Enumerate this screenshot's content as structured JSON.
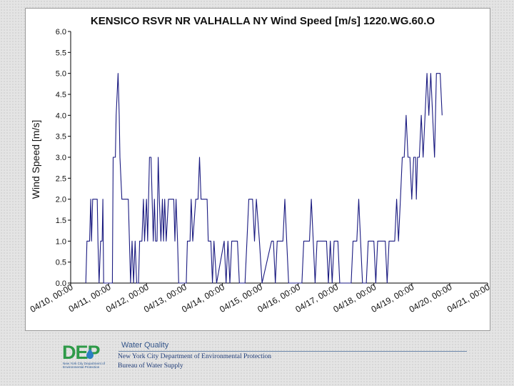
{
  "chart_data": {
    "type": "line",
    "title": "KENSICO RSVR NR VALHALLA NY Wind Speed [m/s] 1220.WG.60.O",
    "xlabel": "",
    "ylabel": "Wind Speed [m/s]",
    "ylim": [
      0,
      6
    ],
    "y_ticks": [
      "0.0",
      "0.5",
      "1.0",
      "1.5",
      "2.0",
      "2.5",
      "3.0",
      "3.5",
      "4.0",
      "4.5",
      "5.0",
      "5.5",
      "6.0"
    ],
    "x_unit": "days since 04/10 00:00",
    "xlim": [
      0,
      11
    ],
    "x_ticks": [
      "04/10, 00:00",
      "04/11, 00:00",
      "04/12, 00:00",
      "04/13, 00:00",
      "04/14, 00:00",
      "04/15, 00:00",
      "04/16, 00:00",
      "04/17, 00:00",
      "04/18, 00:00",
      "04/19, 00:00",
      "04/20, 00:00",
      "04/21, 00:00"
    ],
    "grid": false,
    "legend": "none",
    "line_color": "#1a1a80",
    "series": [
      {
        "name": "",
        "points": [
          [
            0.4,
            0
          ],
          [
            0.43,
            1
          ],
          [
            0.5,
            1
          ],
          [
            0.53,
            2
          ],
          [
            0.55,
            1
          ],
          [
            0.58,
            2
          ],
          [
            0.7,
            2
          ],
          [
            0.72,
            1
          ],
          [
            0.75,
            0
          ],
          [
            0.79,
            1
          ],
          [
            0.83,
            1
          ],
          [
            0.85,
            2
          ],
          [
            0.87,
            0
          ],
          [
            1.1,
            0
          ],
          [
            1.12,
            3
          ],
          [
            1.18,
            3
          ],
          [
            1.2,
            4
          ],
          [
            1.25,
            5
          ],
          [
            1.28,
            4
          ],
          [
            1.3,
            3
          ],
          [
            1.35,
            2
          ],
          [
            1.52,
            2
          ],
          [
            1.55,
            1
          ],
          [
            1.58,
            0
          ],
          [
            1.62,
            1
          ],
          [
            1.66,
            0
          ],
          [
            1.7,
            1
          ],
          [
            1.74,
            0
          ],
          [
            1.79,
            0
          ],
          [
            1.82,
            1
          ],
          [
            1.88,
            1
          ],
          [
            1.92,
            2
          ],
          [
            1.95,
            1
          ],
          [
            2.0,
            2
          ],
          [
            2.03,
            1
          ],
          [
            2.08,
            3
          ],
          [
            2.12,
            3
          ],
          [
            2.15,
            2
          ],
          [
            2.18,
            1
          ],
          [
            2.21,
            2
          ],
          [
            2.24,
            1
          ],
          [
            2.28,
            1
          ],
          [
            2.31,
            3
          ],
          [
            2.34,
            2
          ],
          [
            2.38,
            1
          ],
          [
            2.42,
            2
          ],
          [
            2.45,
            1
          ],
          [
            2.48,
            2
          ],
          [
            2.52,
            1
          ],
          [
            2.58,
            2
          ],
          [
            2.72,
            2
          ],
          [
            2.75,
            1
          ],
          [
            2.78,
            2
          ],
          [
            2.82,
            1
          ],
          [
            2.85,
            0
          ],
          [
            3.05,
            0
          ],
          [
            3.08,
            1
          ],
          [
            3.15,
            1
          ],
          [
            3.18,
            2
          ],
          [
            3.22,
            1
          ],
          [
            3.3,
            2
          ],
          [
            3.36,
            2
          ],
          [
            3.4,
            3
          ],
          [
            3.44,
            2
          ],
          [
            3.6,
            2
          ],
          [
            3.63,
            1
          ],
          [
            3.7,
            1
          ],
          [
            3.74,
            0
          ],
          [
            3.78,
            1
          ],
          [
            3.85,
            0
          ],
          [
            4.05,
            1
          ],
          [
            4.1,
            0
          ],
          [
            4.15,
            1
          ],
          [
            4.2,
            0
          ],
          [
            4.25,
            1
          ],
          [
            4.4,
            1
          ],
          [
            4.45,
            0
          ],
          [
            4.6,
            0
          ],
          [
            4.65,
            1
          ],
          [
            4.7,
            2
          ],
          [
            4.8,
            2
          ],
          [
            4.85,
            1
          ],
          [
            4.9,
            2
          ],
          [
            4.98,
            1
          ],
          [
            5.05,
            0
          ],
          [
            5.3,
            1
          ],
          [
            5.35,
            1
          ],
          [
            5.4,
            0
          ],
          [
            5.45,
            1
          ],
          [
            5.6,
            1
          ],
          [
            5.65,
            2
          ],
          [
            5.7,
            1
          ],
          [
            5.75,
            0
          ],
          [
            6.1,
            0
          ],
          [
            6.15,
            1
          ],
          [
            6.3,
            1
          ],
          [
            6.35,
            2
          ],
          [
            6.4,
            1
          ],
          [
            6.45,
            0
          ],
          [
            6.5,
            1
          ],
          [
            6.6,
            1
          ],
          [
            6.75,
            1
          ],
          [
            6.8,
            0
          ],
          [
            6.85,
            1
          ],
          [
            6.9,
            0
          ],
          [
            6.95,
            1
          ],
          [
            7.05,
            1
          ],
          [
            7.1,
            0
          ],
          [
            7.4,
            0
          ],
          [
            7.45,
            1
          ],
          [
            7.55,
            1
          ],
          [
            7.6,
            2
          ],
          [
            7.65,
            1
          ],
          [
            7.7,
            0
          ],
          [
            7.8,
            0
          ],
          [
            7.85,
            1
          ],
          [
            8.0,
            1
          ],
          [
            8.05,
            0
          ],
          [
            8.1,
            1
          ],
          [
            8.15,
            1
          ],
          [
            8.25,
            1
          ],
          [
            8.3,
            1
          ],
          [
            8.35,
            0
          ],
          [
            8.4,
            1
          ],
          [
            8.55,
            1
          ],
          [
            8.6,
            2
          ],
          [
            8.65,
            1
          ],
          [
            8.7,
            2
          ],
          [
            8.75,
            3
          ],
          [
            8.8,
            3
          ],
          [
            8.85,
            4
          ],
          [
            8.9,
            3
          ],
          [
            8.95,
            3
          ],
          [
            9.0,
            2
          ],
          [
            9.05,
            3
          ],
          [
            9.1,
            3
          ],
          [
            9.12,
            2
          ],
          [
            9.15,
            3
          ],
          [
            9.2,
            3
          ],
          [
            9.25,
            4
          ],
          [
            9.3,
            3
          ],
          [
            9.35,
            4
          ],
          [
            9.4,
            5
          ],
          [
            9.45,
            4
          ],
          [
            9.5,
            5
          ],
          [
            9.55,
            4
          ],
          [
            9.6,
            3
          ],
          [
            9.65,
            5
          ],
          [
            9.75,
            5
          ],
          [
            9.8,
            4
          ]
        ]
      }
    ]
  },
  "footer": {
    "section_title": "Water Quality",
    "agency": "New York City Department of Environmental Protection",
    "bureau": "Bureau of Water Supply",
    "logo": {
      "wordmark": "DEP",
      "line1": "New York City Department of",
      "line2": "Environmental Protection",
      "accent_color": "#2e9a48",
      "text_color": "#2c5a96"
    }
  }
}
